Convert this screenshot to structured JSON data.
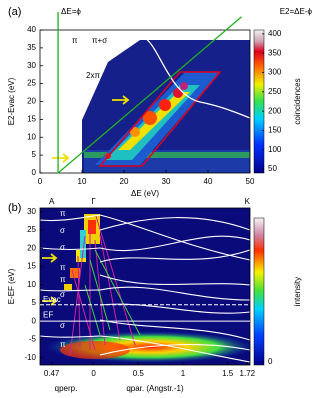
{
  "chart_data": [
    {
      "type": "heatmap",
      "panel": "(a)",
      "xlabel": "ΔE (eV)",
      "ylabel": "E2-Evac (eV)",
      "xlim": [
        0,
        50
      ],
      "ylim": [
        0,
        40
      ],
      "xticks": [
        0,
        10,
        20,
        30,
        40,
        50
      ],
      "yticks": [
        0,
        5,
        10,
        15,
        20,
        25,
        30,
        35,
        40
      ],
      "colorbar": {
        "label": "coincidences",
        "lim": [
          40,
          410
        ],
        "ticks": [
          50,
          100,
          150,
          200,
          250,
          300,
          350,
          400
        ]
      },
      "guides": [
        {
          "label": "ΔE=ϕ",
          "x": 4.3
        },
        {
          "label": "E2=ΔE-ϕ",
          "offset": 4.3
        }
      ],
      "annotations": [
        "π",
        "π+σ",
        "2xπ"
      ]
    },
    {
      "type": "heatmap",
      "panel": "(b)",
      "xlabel": "qpar. (Angstr.-1)",
      "xlabel2": "qperp.",
      "ylabel": "E-EF (eV)",
      "xlim": [
        -0.6,
        1.75
      ],
      "ylim": [
        -12,
        31
      ],
      "xticks": [
        {
          "value": -0.47,
          "label": "0.47"
        },
        0,
        0.5,
        1,
        1.5,
        1.72
      ],
      "yticks": [
        -10,
        -5,
        0,
        5,
        10,
        15,
        20,
        25,
        30
      ],
      "symmetry_points": [
        {
          "label": "A",
          "x": -0.47
        },
        {
          "label": "Γ",
          "x": 0
        },
        {
          "label": "K",
          "x": 1.72
        }
      ],
      "band_labels": [
        "π",
        "σ",
        "σ",
        "π",
        "π",
        "σ",
        "σ",
        "π"
      ],
      "reference_lines": [
        {
          "label": "Evac",
          "y": 4.5
        },
        {
          "label": "EF",
          "y": 0
        }
      ],
      "colorbar": {
        "label": "intensity",
        "ticks": [
          0
        ]
      }
    }
  ]
}
